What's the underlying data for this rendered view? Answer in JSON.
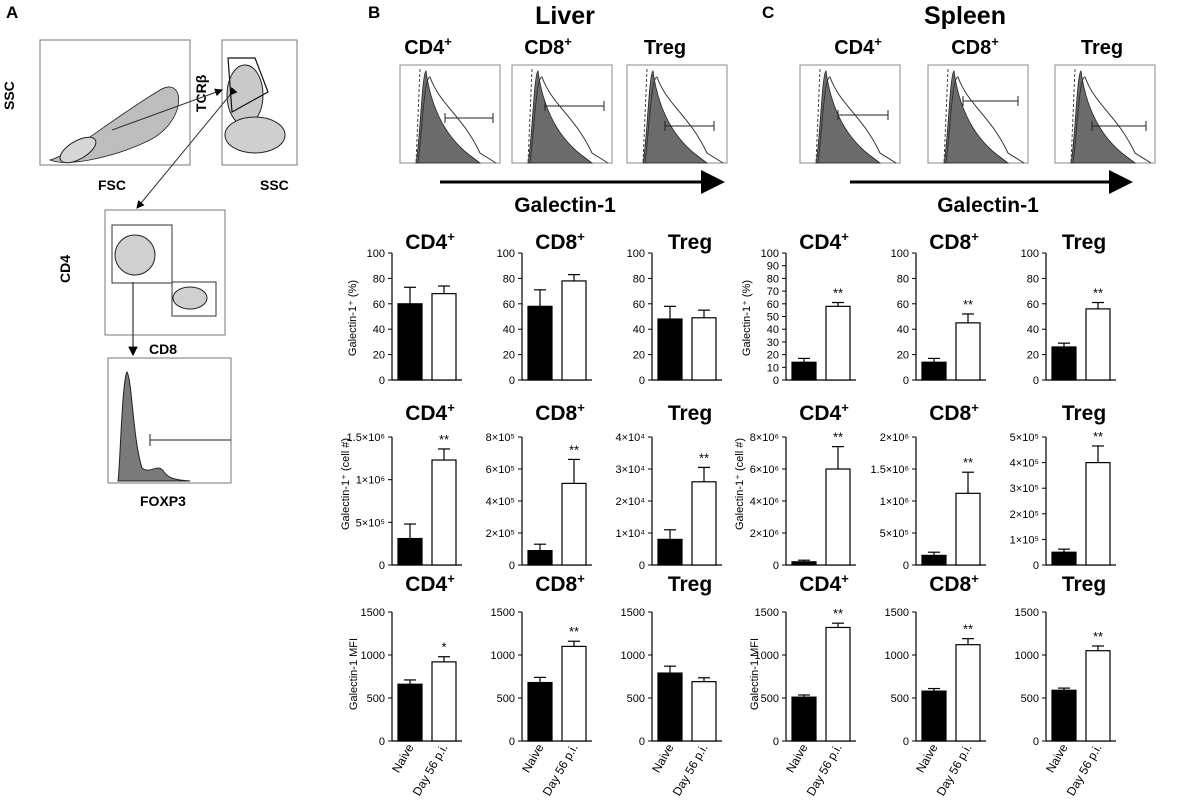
{
  "panels": {
    "A": {
      "letter": "A",
      "ssc_fsc": {
        "ylabel": "SSC",
        "xlabel": "FSC"
      },
      "tcr_ssc": {
        "ylabel": "TCR",
        "ylabel_greek": "β",
        "xlabel": "SSC"
      },
      "cd4_cd8": {
        "ylabel": "CD4",
        "xlabel": "CD8"
      },
      "foxp3": {
        "xlabel": "FOXP3"
      }
    },
    "B": {
      "letter": "B",
      "tissue": "Liver",
      "hist_titles": [
        "CD4",
        "CD8",
        "Treg"
      ],
      "arrow_label": "Galectin-1"
    },
    "C": {
      "letter": "C",
      "tissue": "Spleen",
      "hist_titles": [
        "CD4",
        "CD8",
        "Treg"
      ],
      "arrow_label": "Galectin-1"
    }
  },
  "plus": "+",
  "row_ylabels": {
    "percent_liver": "Galectin-1⁺ (%)",
    "percent_spleen": "Galectin-1⁺ (%)",
    "count_liver": "Galectin-1⁺ (cell #)",
    "count_spleen": "Galectin-1⁺ (cell #)",
    "mfi_liver": "Galectin-1 MFI",
    "mfi_spleen": "Galectin-1 MFI"
  },
  "x_categories": [
    "Naive",
    "Day 56 p.i."
  ],
  "colors": {
    "naive": "#000000",
    "day56": "#ffffff",
    "hist_fill": "#6b6b6b"
  },
  "chart_data": [
    {
      "type": "bar",
      "panel": "B",
      "row": "percent",
      "subset": "CD4",
      "title": "CD4",
      "categories": [
        "Naive",
        "Day 56 p.i."
      ],
      "values": [
        60,
        68
      ],
      "errors": [
        13,
        6
      ],
      "sig": [
        "",
        ""
      ],
      "ylim": [
        0,
        100
      ],
      "ticks": [
        "0",
        "20",
        "40",
        "60",
        "80",
        "100"
      ]
    },
    {
      "type": "bar",
      "panel": "B",
      "row": "percent",
      "subset": "CD8",
      "title": "CD8",
      "categories": [
        "Naive",
        "Day 56 p.i."
      ],
      "values": [
        58,
        78
      ],
      "errors": [
        13,
        5
      ],
      "sig": [
        "",
        ""
      ],
      "ylim": [
        0,
        100
      ],
      "ticks": [
        "0",
        "20",
        "40",
        "60",
        "80",
        "100"
      ]
    },
    {
      "type": "bar",
      "panel": "B",
      "row": "percent",
      "subset": "Treg",
      "title": "Treg",
      "categories": [
        "Naive",
        "Day 56 p.i."
      ],
      "values": [
        48,
        49
      ],
      "errors": [
        10,
        6
      ],
      "sig": [
        "",
        ""
      ],
      "ylim": [
        0,
        100
      ],
      "ticks": [
        "0",
        "20",
        "40",
        "60",
        "80",
        "100"
      ]
    },
    {
      "type": "bar",
      "panel": "C",
      "row": "percent",
      "subset": "CD4",
      "title": "CD4",
      "categories": [
        "Naive",
        "Day 56 p.i."
      ],
      "values": [
        14,
        58
      ],
      "errors": [
        3,
        3
      ],
      "sig": [
        "",
        "**"
      ],
      "ylim": [
        0,
        100
      ],
      "ticks": [
        "0",
        "10",
        "20",
        "30",
        "40",
        "50",
        "60",
        "70",
        "80",
        "90",
        "100"
      ]
    },
    {
      "type": "bar",
      "panel": "C",
      "row": "percent",
      "subset": "CD8",
      "title": "CD8",
      "categories": [
        "Naive",
        "Day 56 p.i."
      ],
      "values": [
        14,
        45
      ],
      "errors": [
        3,
        7
      ],
      "sig": [
        "",
        "**"
      ],
      "ylim": [
        0,
        100
      ],
      "ticks": [
        "0",
        "20",
        "40",
        "60",
        "80",
        "100"
      ]
    },
    {
      "type": "bar",
      "panel": "C",
      "row": "percent",
      "subset": "Treg",
      "title": "Treg",
      "categories": [
        "Naive",
        "Day 56 p.i."
      ],
      "values": [
        26,
        56
      ],
      "errors": [
        3,
        5
      ],
      "sig": [
        "",
        "**"
      ],
      "ylim": [
        0,
        100
      ],
      "ticks": [
        "0",
        "20",
        "40",
        "60",
        "80",
        "100"
      ]
    },
    {
      "type": "bar",
      "panel": "B",
      "row": "count",
      "subset": "CD4",
      "title": "CD4",
      "categories": [
        "Naive",
        "Day 56 p.i."
      ],
      "values": [
        0.31,
        1.23
      ],
      "errors": [
        0.17,
        0.13
      ],
      "sig": [
        "",
        "**"
      ],
      "ylim": [
        0,
        1.5
      ],
      "ticks": [
        "0",
        "5×10⁵",
        "1×10⁶",
        "1.5×10⁶"
      ]
    },
    {
      "type": "bar",
      "panel": "B",
      "row": "count",
      "subset": "CD8",
      "title": "CD8",
      "categories": [
        "Naive",
        "Day 56 p.i."
      ],
      "values": [
        0.9,
        5.1
      ],
      "errors": [
        0.4,
        1.5
      ],
      "sig": [
        "",
        "**"
      ],
      "ylim": [
        0,
        8
      ],
      "ticks": [
        "0",
        "2×10⁵",
        "4×10⁵",
        "6×10⁵",
        "8×10⁵"
      ]
    },
    {
      "type": "bar",
      "panel": "B",
      "row": "count",
      "subset": "Treg",
      "title": "Treg",
      "categories": [
        "Naive",
        "Day 56 p.i."
      ],
      "values": [
        0.8,
        2.6
      ],
      "errors": [
        0.3,
        0.45
      ],
      "sig": [
        "",
        "**"
      ],
      "ylim": [
        0,
        4
      ],
      "ticks": [
        "0",
        "1×10⁴",
        "2×10⁴",
        "3×10⁴",
        "4×10⁴"
      ]
    },
    {
      "type": "bar",
      "panel": "C",
      "row": "count",
      "subset": "CD4",
      "title": "CD4",
      "categories": [
        "Naive",
        "Day 56 p.i."
      ],
      "values": [
        0.2,
        6.0
      ],
      "errors": [
        0.1,
        1.4
      ],
      "sig": [
        "",
        "**"
      ],
      "ylim": [
        0,
        8
      ],
      "ticks": [
        "0",
        "2×10⁶",
        "4×10⁶",
        "6×10⁶",
        "8×10⁶"
      ]
    },
    {
      "type": "bar",
      "panel": "C",
      "row": "count",
      "subset": "CD8",
      "title": "CD8",
      "categories": [
        "Naive",
        "Day 56 p.i."
      ],
      "values": [
        0.15,
        1.12
      ],
      "errors": [
        0.05,
        0.33
      ],
      "sig": [
        "",
        "**"
      ],
      "ylim": [
        0,
        2
      ],
      "ticks": [
        "0",
        "5×10⁵",
        "1×10⁶",
        "1.5×10⁶",
        "2×10⁶"
      ]
    },
    {
      "type": "bar",
      "panel": "C",
      "row": "count",
      "subset": "Treg",
      "title": "Treg",
      "categories": [
        "Naive",
        "Day 56 p.i."
      ],
      "values": [
        0.5,
        4.0
      ],
      "errors": [
        0.12,
        0.65
      ],
      "sig": [
        "",
        "**"
      ],
      "ylim": [
        0,
        5
      ],
      "ticks": [
        "0",
        "1×10⁵",
        "2×10⁵",
        "3×10⁵",
        "4×10⁵",
        "5×10⁵"
      ]
    },
    {
      "type": "bar",
      "panel": "B",
      "row": "mfi",
      "subset": "CD4",
      "title": "CD4",
      "categories": [
        "Naive",
        "Day 56 p.i."
      ],
      "values": [
        660,
        920
      ],
      "errors": [
        50,
        60
      ],
      "sig": [
        "",
        "*"
      ],
      "ylim": [
        0,
        1500
      ],
      "ticks": [
        "0",
        "500",
        "1000",
        "1500"
      ]
    },
    {
      "type": "bar",
      "panel": "B",
      "row": "mfi",
      "subset": "CD8",
      "title": "CD8",
      "categories": [
        "Naive",
        "Day 56 p.i."
      ],
      "values": [
        680,
        1100
      ],
      "errors": [
        60,
        60
      ],
      "sig": [
        "",
        "**"
      ],
      "ylim": [
        0,
        1500
      ],
      "ticks": [
        "0",
        "500",
        "1000",
        "1500"
      ]
    },
    {
      "type": "bar",
      "panel": "B",
      "row": "mfi",
      "subset": "Treg",
      "title": "Treg",
      "categories": [
        "Naive",
        "Day 56 p.i."
      ],
      "values": [
        790,
        690
      ],
      "errors": [
        80,
        45
      ],
      "sig": [
        "",
        ""
      ],
      "ylim": [
        0,
        1500
      ],
      "ticks": [
        "0",
        "500",
        "1000",
        "1500"
      ]
    },
    {
      "type": "bar",
      "panel": "C",
      "row": "mfi",
      "subset": "CD4",
      "title": "CD4",
      "categories": [
        "Naive",
        "Day 56 p.i."
      ],
      "values": [
        510,
        1320
      ],
      "errors": [
        25,
        50
      ],
      "sig": [
        "",
        "**"
      ],
      "ylim": [
        0,
        1500
      ],
      "ticks": [
        "0",
        "500",
        "1000",
        "1500"
      ]
    },
    {
      "type": "bar",
      "panel": "C",
      "row": "mfi",
      "subset": "CD8",
      "title": "CD8",
      "categories": [
        "Naive",
        "Day 56 p.i."
      ],
      "values": [
        580,
        1120
      ],
      "errors": [
        30,
        70
      ],
      "sig": [
        "",
        "**"
      ],
      "ylim": [
        0,
        1500
      ],
      "ticks": [
        "0",
        "500",
        "1000",
        "1500"
      ]
    },
    {
      "type": "bar",
      "panel": "C",
      "row": "mfi",
      "subset": "Treg",
      "title": "Treg",
      "categories": [
        "Naive",
        "Day 56 p.i."
      ],
      "values": [
        590,
        1050
      ],
      "errors": [
        25,
        55
      ],
      "sig": [
        "",
        "**"
      ],
      "ylim": [
        0,
        1500
      ],
      "ticks": [
        "0",
        "500",
        "1000",
        "1500"
      ]
    }
  ]
}
